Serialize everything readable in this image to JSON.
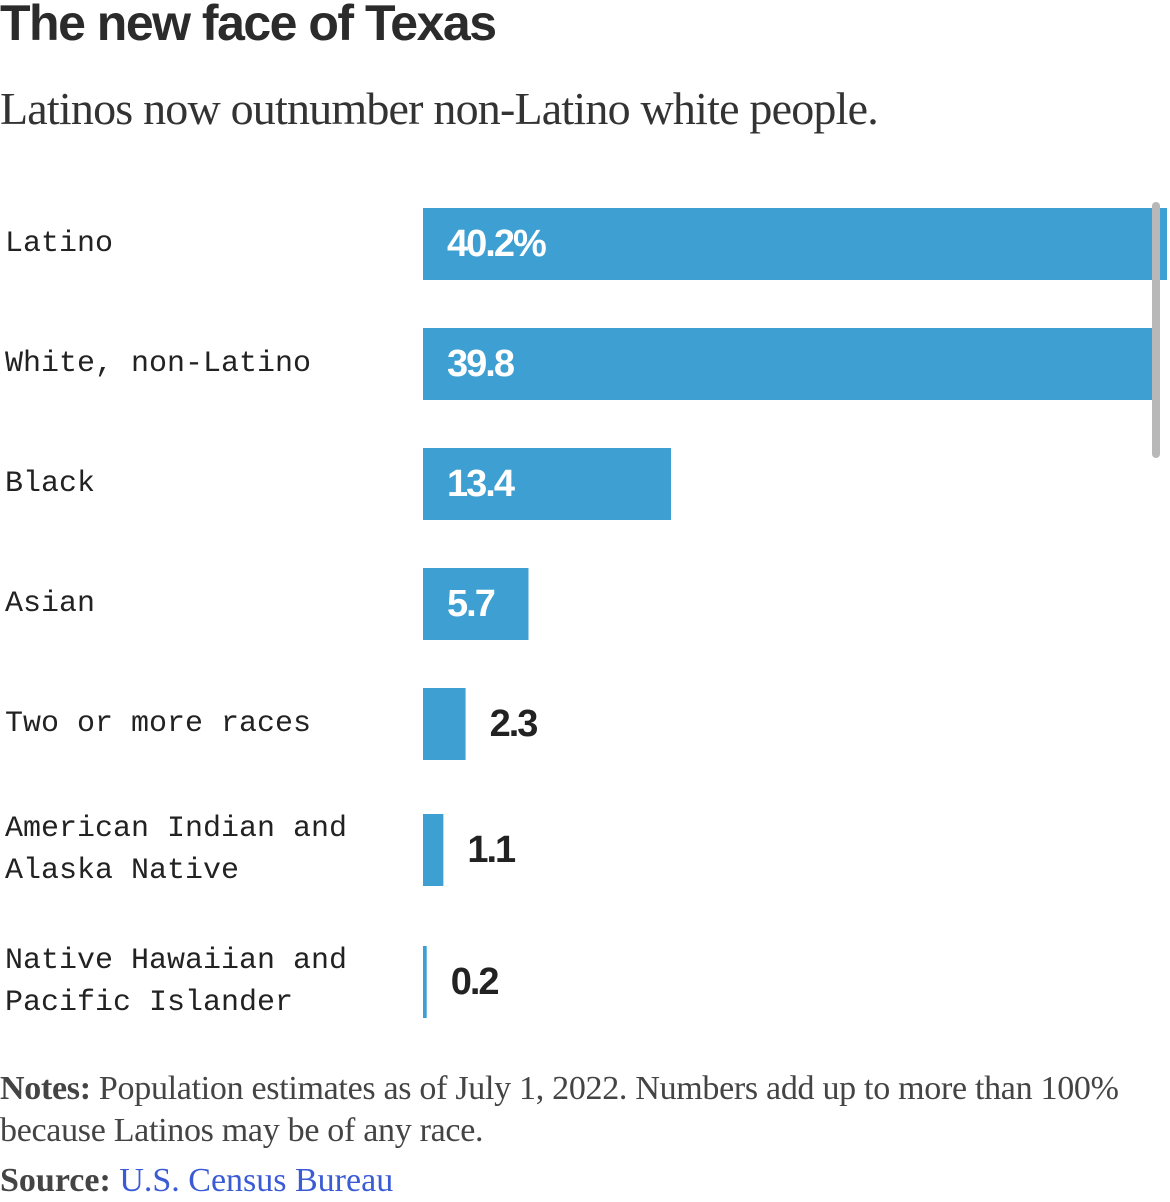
{
  "title": "The new face of Texas",
  "subtitle": "Latinos now outnumber non-Latino white people.",
  "chart_data": {
    "type": "bar",
    "orientation": "horizontal",
    "categories": [
      [
        "Latino"
      ],
      [
        "White, non-Latino"
      ],
      [
        "Black"
      ],
      [
        "Asian"
      ],
      [
        "Two or more races"
      ],
      [
        "American Indian and",
        "Alaska Native"
      ],
      [
        "Native Hawaiian and",
        "Pacific Islander"
      ]
    ],
    "values": [
      40.2,
      39.8,
      13.4,
      5.7,
      2.3,
      1.1,
      0.2
    ],
    "value_labels": [
      "40.2%",
      "39.8",
      "13.4",
      "5.7",
      "2.3",
      "1.1",
      "0.2"
    ],
    "xlim": [
      0,
      40.2
    ],
    "bar_color": "#3d9fd2",
    "grid": false,
    "legend": "none"
  },
  "notes": {
    "label": "Notes:",
    "text": " Population estimates as of July 1, 2022. Numbers add up to more than 100% because Latinos may be of any race."
  },
  "source": {
    "label": "Source:",
    "text": "U.S. Census Bureau"
  }
}
